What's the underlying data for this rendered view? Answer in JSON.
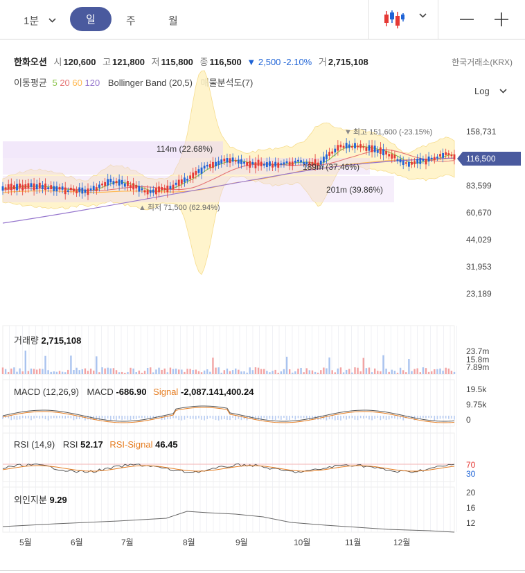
{
  "toolbar": {
    "interval_label": "1분",
    "tabs": [
      {
        "label": "일",
        "active": true
      },
      {
        "label": "주",
        "active": false
      },
      {
        "label": "월",
        "active": false
      }
    ],
    "chart_type_icon": "candlestick-icon",
    "minus_icon": "minus-icon",
    "plus_icon": "plus-icon"
  },
  "stock": {
    "name": "한화오션",
    "open_label": "시",
    "open": "120,600",
    "high_label": "고",
    "high": "121,800",
    "low_label": "저",
    "low": "115,800",
    "close_label": "종",
    "close": "116,500",
    "change": "▼ 2,500",
    "change_pct": "-2.10%",
    "volume_label": "거",
    "volume": "2,715,108",
    "exchange": "한국거래소(KRX)"
  },
  "indicators": {
    "ma_label": "이동평균",
    "ma_periods": [
      "5",
      "20",
      "60",
      "120"
    ],
    "ma_colors": [
      "#8bc34a",
      "#e57373",
      "#ffb74d",
      "#9575cd"
    ],
    "bollinger": "Bollinger Band (20,5)",
    "volume_profile": "매물분석도(7)",
    "scale_label": "Log"
  },
  "main_chart": {
    "y_ticks": [
      "158,731",
      "83,599",
      "60,670",
      "44,029",
      "31,953",
      "23,189"
    ],
    "current_price_tag": "116,500",
    "annotations": {
      "high": "최고 151,600 (-23.15%)",
      "low": "최저 71,500 (62.94%)",
      "profile1": "114m (22.68%)",
      "profile2": "189m (37.46%)",
      "profile3": "201m (39.86%)"
    },
    "colors": {
      "up": "#e53935",
      "down": "#1e63d6",
      "band": "#fff3c4",
      "profile": "#e8d5f5"
    }
  },
  "volume_panel": {
    "label": "거래량",
    "value": "2,715,108",
    "y_ticks": [
      "23.7m",
      "15.8m",
      "7.89m"
    ]
  },
  "macd_panel": {
    "label": "MACD (12,26,9)",
    "macd_label": "MACD",
    "macd_value": "-686.90",
    "signal_label": "Signal",
    "signal_value": "-2,087.141,400.24",
    "y_ticks": [
      "19.5k",
      "9.75k",
      "0"
    ]
  },
  "rsi_panel": {
    "label": "RSI (14,9)",
    "rsi_label": "RSI",
    "rsi_value": "52.17",
    "signal_label": "RSI-Signal",
    "signal_value": "46.45",
    "y_ticks": [
      "70",
      "30"
    ]
  },
  "foreign_panel": {
    "label": "외인지분",
    "value": "9.29",
    "y_ticks": [
      "20",
      "16",
      "12"
    ]
  },
  "x_axis": [
    "5월",
    "6월",
    "7월",
    "8월",
    "9월",
    "10월",
    "11월",
    "12월"
  ]
}
